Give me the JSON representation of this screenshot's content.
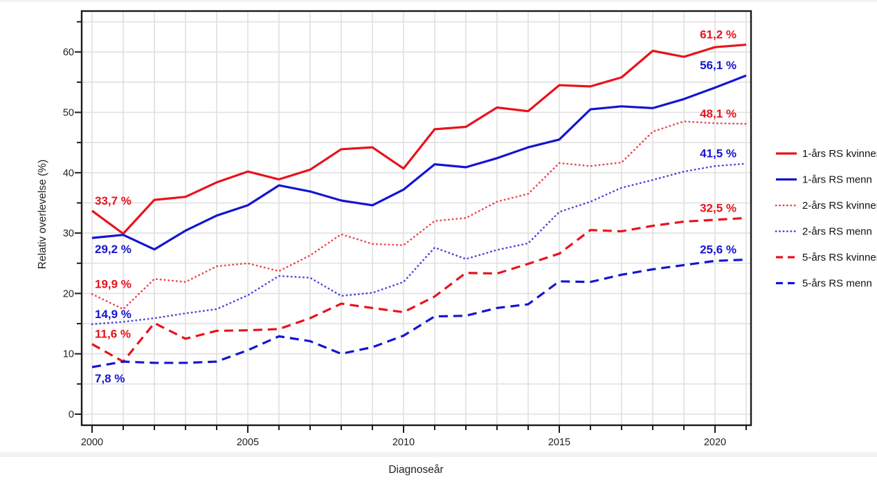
{
  "chart_data": {
    "type": "line",
    "title": "",
    "xlabel": "Diagnoseår",
    "ylabel": "Relativ overlevelse (%)",
    "x": [
      2000,
      2001,
      2002,
      2003,
      2004,
      2005,
      2006,
      2007,
      2008,
      2009,
      2010,
      2011,
      2012,
      2013,
      2014,
      2015,
      2016,
      2017,
      2018,
      2019,
      2020,
      2021
    ],
    "x_ticks": [
      2000,
      2005,
      2010,
      2015,
      2020
    ],
    "x_tick_labels": [
      "2000",
      "2005",
      "2010",
      "2015",
      "2020"
    ],
    "y_ticks": [
      0,
      10,
      20,
      30,
      40,
      50,
      60
    ],
    "y_tick_labels": [
      "0",
      "10",
      "20",
      "30",
      "40",
      "50",
      "60"
    ],
    "y_minor_step": 5,
    "ylim": [
      0,
      65
    ],
    "xlim": [
      2000,
      2021
    ],
    "grid": "both",
    "legend_position": "right",
    "colors": {
      "kvinner": "#e8121b",
      "menn": "#1414d2",
      "axis": "#1a1a1a",
      "grid": "#e0e0e0"
    },
    "series": [
      {
        "name": "1-års RS kvinner",
        "color": "#e8121b",
        "style": "solid",
        "start_label": "33,7 %",
        "end_label": "61,2 %",
        "start_label_below": false,
        "values": [
          33.7,
          29.9,
          35.5,
          36.0,
          38.4,
          40.2,
          38.9,
          40.5,
          43.9,
          44.2,
          40.7,
          47.2,
          47.6,
          50.8,
          50.2,
          54.5,
          54.3,
          55.8,
          60.2,
          59.2,
          60.8,
          61.2
        ]
      },
      {
        "name": "1-års RS menn",
        "color": "#1414d2",
        "style": "solid",
        "start_label": "29,2 %",
        "end_label": "56,1 %",
        "start_label_below": true,
        "values": [
          29.2,
          29.7,
          27.3,
          30.4,
          32.9,
          34.6,
          37.9,
          36.9,
          35.4,
          34.6,
          37.2,
          41.4,
          40.9,
          42.4,
          44.2,
          45.5,
          50.5,
          51.0,
          50.7,
          52.2,
          54.1,
          56.1
        ]
      },
      {
        "name": "2-års RS kvinner",
        "color": "#e8121b",
        "style": "dotted",
        "start_label": "19,9 %",
        "end_label": "48,1 %",
        "start_label_below": false,
        "values": [
          19.9,
          17.4,
          22.4,
          21.9,
          24.5,
          25.0,
          23.7,
          26.3,
          29.8,
          28.2,
          28.0,
          32.0,
          32.5,
          35.2,
          36.5,
          41.6,
          41.1,
          41.7,
          46.8,
          48.5,
          48.2,
          48.1
        ]
      },
      {
        "name": "2-års RS menn",
        "color": "#1414d2",
        "style": "dotted",
        "start_label": "14,9 %",
        "end_label": "41,5 %",
        "start_label_below": false,
        "values": [
          14.9,
          15.3,
          15.9,
          16.7,
          17.4,
          19.7,
          22.9,
          22.6,
          19.6,
          20.1,
          21.9,
          27.6,
          25.7,
          27.2,
          28.3,
          33.5,
          35.2,
          37.5,
          38.8,
          40.2,
          41.1,
          41.5
        ]
      },
      {
        "name": "5-års RS kvinner",
        "color": "#e8121b",
        "style": "dashed",
        "start_label": "11,6 %",
        "end_label": "32,5 %",
        "start_label_below": false,
        "values": [
          11.6,
          8.7,
          15.1,
          12.5,
          13.8,
          13.9,
          14.1,
          15.9,
          18.3,
          17.6,
          16.9,
          19.5,
          23.4,
          23.3,
          24.9,
          26.6,
          30.5,
          30.3,
          31.2,
          31.9,
          32.2,
          32.5
        ]
      },
      {
        "name": "5-års RS menn",
        "color": "#1414d2",
        "style": "dashed",
        "start_label": "7,8 %",
        "end_label": "25,6 %",
        "start_label_below": true,
        "values": [
          7.8,
          8.7,
          8.5,
          8.5,
          8.7,
          10.6,
          12.9,
          12.1,
          10.0,
          11.1,
          13.0,
          16.2,
          16.3,
          17.6,
          18.2,
          22.0,
          21.9,
          23.1,
          24.0,
          24.7,
          25.4,
          25.6
        ]
      }
    ]
  }
}
